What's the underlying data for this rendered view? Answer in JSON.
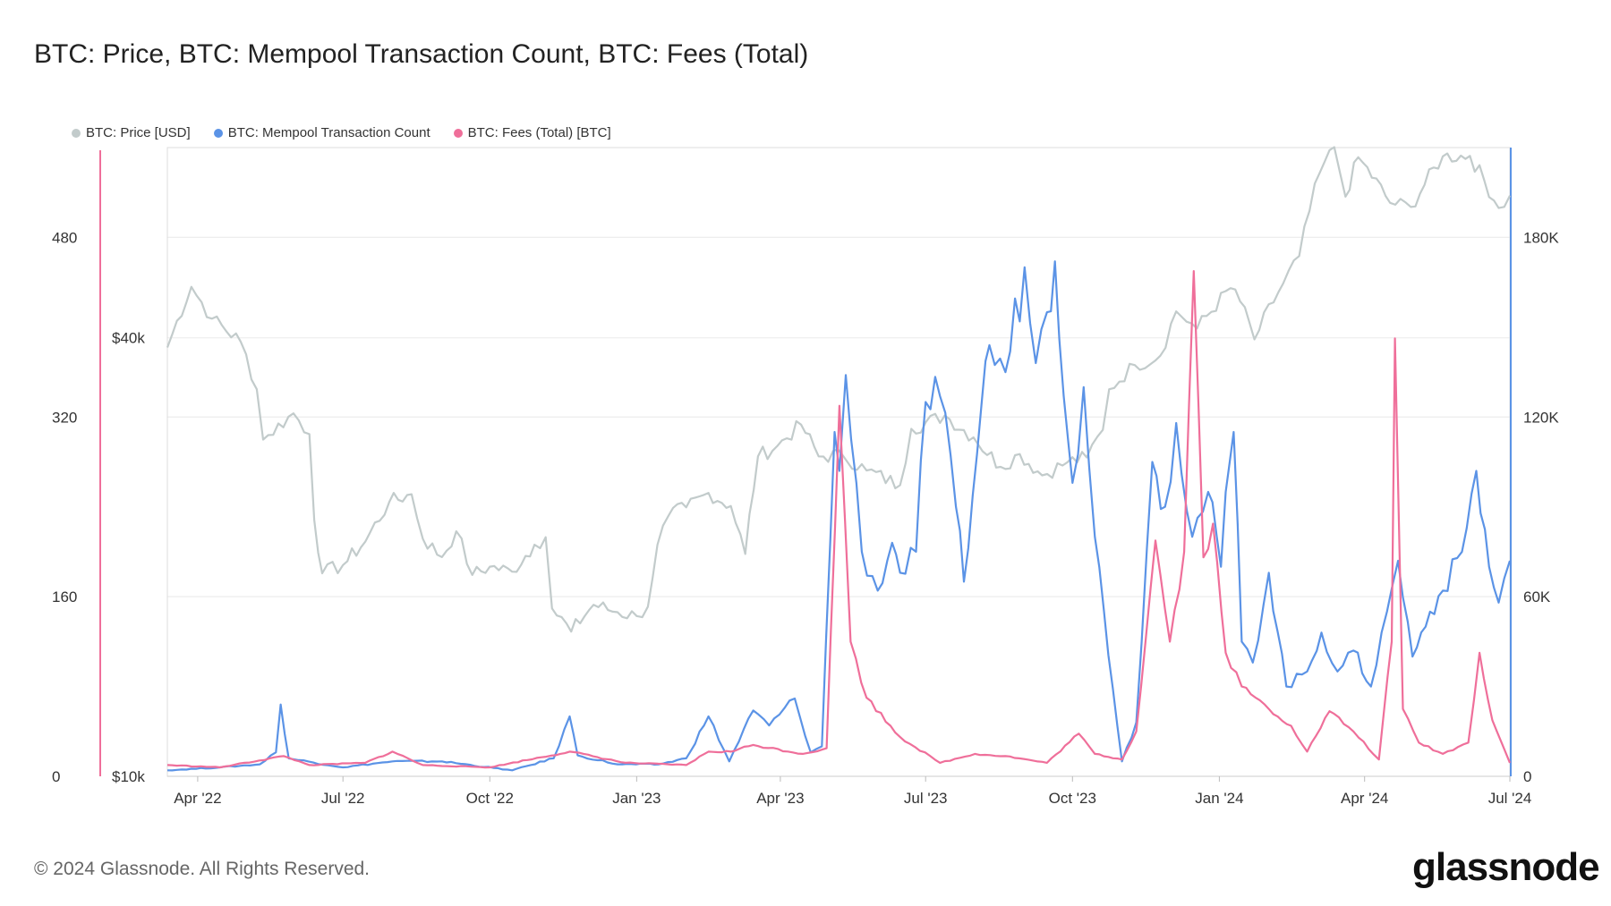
{
  "title": "BTC: Price, BTC: Mempool Transaction Count, BTC: Fees (Total)",
  "footer": "© 2024 Glassnode. All Rights Reserved.",
  "logo": "glassnode",
  "colors": {
    "price": "#c2cbcb",
    "mempool": "#5b93e6",
    "fees": "#ef6f9a"
  },
  "legend": [
    {
      "label": "BTC: Price [USD]",
      "color": "#c2cbcb"
    },
    {
      "label": "BTC: Mempool Transaction Count",
      "color": "#5b93e6"
    },
    {
      "label": "BTC: Fees (Total) [BTC]",
      "color": "#ef6f9a"
    }
  ],
  "chart_data": {
    "type": "line",
    "grid": true,
    "legend_position": "top-left",
    "x_tick_labels": [
      "Apr '22",
      "Jul '22",
      "Oct '22",
      "Jan '23",
      "Apr '23",
      "Jul '23",
      "Oct '23",
      "Jan '24",
      "Apr '24",
      "Jul '24"
    ],
    "x_tick_dates": [
      "2022-04-01",
      "2022-07-01",
      "2022-10-01",
      "2023-01-01",
      "2023-04-01",
      "2023-07-01",
      "2023-10-01",
      "2024-01-01",
      "2024-04-01",
      "2024-07-01"
    ],
    "x_range": [
      "2022-03-13",
      "2024-07-01"
    ],
    "axes": {
      "fees": {
        "ticks": [
          0,
          160,
          320,
          480
        ],
        "tick_labels": [
          "0",
          "160",
          "320",
          "480"
        ],
        "range": [
          0,
          560
        ]
      },
      "price": {
        "scale": "log",
        "ticks": [
          10000,
          40000
        ],
        "tick_labels": [
          "$10k",
          "$40k"
        ],
        "range": [
          10000,
          73000
        ]
      },
      "mempool": {
        "ticks": [
          0,
          60000,
          120000,
          180000
        ],
        "tick_labels": [
          "0",
          "60K",
          "120K",
          "180K"
        ],
        "range": [
          0,
          210000
        ]
      }
    },
    "series": [
      {
        "name": "BTC: Price [USD]",
        "axis": "price",
        "points": [
          [
            "2022-03-13",
            38800
          ],
          [
            "2022-03-28",
            47000
          ],
          [
            "2022-04-10",
            42500
          ],
          [
            "2022-04-28",
            39500
          ],
          [
            "2022-05-08",
            34000
          ],
          [
            "2022-05-12",
            29000
          ],
          [
            "2022-05-31",
            31500
          ],
          [
            "2022-06-10",
            29500
          ],
          [
            "2022-06-13",
            22500
          ],
          [
            "2022-06-18",
            19000
          ],
          [
            "2022-07-01",
            19500
          ],
          [
            "2022-07-15",
            21000
          ],
          [
            "2022-07-30",
            23800
          ],
          [
            "2022-08-13",
            24400
          ],
          [
            "2022-08-20",
            21200
          ],
          [
            "2022-09-01",
            20000
          ],
          [
            "2022-09-10",
            21700
          ],
          [
            "2022-09-20",
            18900
          ],
          [
            "2022-10-01",
            19400
          ],
          [
            "2022-10-15",
            19100
          ],
          [
            "2022-10-29",
            20800
          ],
          [
            "2022-11-05",
            21300
          ],
          [
            "2022-11-09",
            17000
          ],
          [
            "2022-11-21",
            15800
          ],
          [
            "2022-12-05",
            17200
          ],
          [
            "2022-12-20",
            16800
          ],
          [
            "2023-01-01",
            16600
          ],
          [
            "2023-01-08",
            17100
          ],
          [
            "2023-01-14",
            20800
          ],
          [
            "2023-01-21",
            22800
          ],
          [
            "2023-02-01",
            23400
          ],
          [
            "2023-02-15",
            24500
          ],
          [
            "2023-03-01",
            23500
          ],
          [
            "2023-03-10",
            20200
          ],
          [
            "2023-03-18",
            27500
          ],
          [
            "2023-03-30",
            28400
          ],
          [
            "2023-04-14",
            30400
          ],
          [
            "2023-04-25",
            27500
          ],
          [
            "2023-05-10",
            27600
          ],
          [
            "2023-05-25",
            26300
          ],
          [
            "2023-06-15",
            25100
          ],
          [
            "2023-06-22",
            30000
          ],
          [
            "2023-07-13",
            31300
          ],
          [
            "2023-07-31",
            29200
          ],
          [
            "2023-08-17",
            26600
          ],
          [
            "2023-08-29",
            27700
          ],
          [
            "2023-09-12",
            25900
          ],
          [
            "2023-09-28",
            27000
          ],
          [
            "2023-10-10",
            27400
          ],
          [
            "2023-10-20",
            29900
          ],
          [
            "2023-10-24",
            34000
          ],
          [
            "2023-11-09",
            36700
          ],
          [
            "2023-11-25",
            37800
          ],
          [
            "2023-12-05",
            43500
          ],
          [
            "2023-12-18",
            41200
          ],
          [
            "2024-01-08",
            46800
          ],
          [
            "2024-01-11",
            46600
          ],
          [
            "2024-01-23",
            39800
          ],
          [
            "2024-02-10",
            47500
          ],
          [
            "2024-02-20",
            51800
          ],
          [
            "2024-03-04",
            67500
          ],
          [
            "2024-03-13",
            73100
          ],
          [
            "2024-03-20",
            62500
          ],
          [
            "2024-03-28",
            70800
          ],
          [
            "2024-04-17",
            61300
          ],
          [
            "2024-04-30",
            60500
          ],
          [
            "2024-05-20",
            71000
          ],
          [
            "2024-06-06",
            71100
          ],
          [
            "2024-06-24",
            60300
          ],
          [
            "2024-07-01",
            62700
          ]
        ]
      },
      {
        "name": "BTC: Mempool Transaction Count",
        "axis": "mempool",
        "points": [
          [
            "2022-03-13",
            2000
          ],
          [
            "2022-04-15",
            3000
          ],
          [
            "2022-05-10",
            4000
          ],
          [
            "2022-05-20",
            8000
          ],
          [
            "2022-05-23",
            24000
          ],
          [
            "2022-05-28",
            6000
          ],
          [
            "2022-07-01",
            3000
          ],
          [
            "2022-08-01",
            5000
          ],
          [
            "2022-09-01",
            5000
          ],
          [
            "2022-10-15",
            2000
          ],
          [
            "2022-11-10",
            6000
          ],
          [
            "2022-11-20",
            20000
          ],
          [
            "2022-11-25",
            7000
          ],
          [
            "2022-12-20",
            4000
          ],
          [
            "2023-01-15",
            4000
          ],
          [
            "2023-02-01",
            6000
          ],
          [
            "2023-02-15",
            20000
          ],
          [
            "2023-02-28",
            5000
          ],
          [
            "2023-03-15",
            22000
          ],
          [
            "2023-03-25",
            17000
          ],
          [
            "2023-04-10",
            26000
          ],
          [
            "2023-04-20",
            8000
          ],
          [
            "2023-04-27",
            10000
          ],
          [
            "2023-05-05",
            115000
          ],
          [
            "2023-05-08",
            102000
          ],
          [
            "2023-05-12",
            134000
          ],
          [
            "2023-05-22",
            75000
          ],
          [
            "2023-06-01",
            62000
          ],
          [
            "2023-06-10",
            78000
          ],
          [
            "2023-06-15",
            68000
          ],
          [
            "2023-06-25",
            75000
          ],
          [
            "2023-07-01",
            125000
          ],
          [
            "2023-07-10",
            127000
          ],
          [
            "2023-07-20",
            90000
          ],
          [
            "2023-07-25",
            65000
          ],
          [
            "2023-08-05",
            124000
          ],
          [
            "2023-08-10",
            144000
          ],
          [
            "2023-08-20",
            135000
          ],
          [
            "2023-09-01",
            170000
          ],
          [
            "2023-09-08",
            138000
          ],
          [
            "2023-09-15",
            155000
          ],
          [
            "2023-09-20",
            172000
          ],
          [
            "2023-10-01",
            98000
          ],
          [
            "2023-10-08",
            130000
          ],
          [
            "2023-10-15",
            80000
          ],
          [
            "2023-11-01",
            5000
          ],
          [
            "2023-11-10",
            18000
          ],
          [
            "2023-11-20",
            105000
          ],
          [
            "2023-11-28",
            90000
          ],
          [
            "2023-12-05",
            118000
          ],
          [
            "2023-12-15",
            80000
          ],
          [
            "2023-12-25",
            95000
          ],
          [
            "2024-01-02",
            70000
          ],
          [
            "2024-01-05",
            95000
          ],
          [
            "2024-01-10",
            115000
          ],
          [
            "2024-01-15",
            45000
          ],
          [
            "2024-01-22",
            38000
          ],
          [
            "2024-02-01",
            68000
          ],
          [
            "2024-02-12",
            30000
          ],
          [
            "2024-02-25",
            35000
          ],
          [
            "2024-03-05",
            48000
          ],
          [
            "2024-03-15",
            35000
          ],
          [
            "2024-03-25",
            42000
          ],
          [
            "2024-04-05",
            30000
          ],
          [
            "2024-04-15",
            55000
          ],
          [
            "2024-04-22",
            72000
          ],
          [
            "2024-05-01",
            40000
          ],
          [
            "2024-05-12",
            55000
          ],
          [
            "2024-05-20",
            62000
          ],
          [
            "2024-06-01",
            75000
          ],
          [
            "2024-06-10",
            102000
          ],
          [
            "2024-06-18",
            70000
          ],
          [
            "2024-06-24",
            58000
          ],
          [
            "2024-07-01",
            72000
          ]
        ]
      },
      {
        "name": "BTC: Fees (Total) [BTC]",
        "axis": "fees",
        "points": [
          [
            "2022-03-13",
            10
          ],
          [
            "2022-04-15",
            8
          ],
          [
            "2022-05-25",
            18
          ],
          [
            "2022-06-10",
            10
          ],
          [
            "2022-07-15",
            12
          ],
          [
            "2022-08-01",
            22
          ],
          [
            "2022-08-20",
            10
          ],
          [
            "2022-10-01",
            8
          ],
          [
            "2022-11-20",
            22
          ],
          [
            "2022-12-25",
            12
          ],
          [
            "2023-02-01",
            10
          ],
          [
            "2023-02-15",
            22
          ],
          [
            "2023-03-01",
            22
          ],
          [
            "2023-03-15",
            28
          ],
          [
            "2023-04-15",
            20
          ],
          [
            "2023-04-30",
            25
          ],
          [
            "2023-05-08",
            330
          ],
          [
            "2023-05-15",
            120
          ],
          [
            "2023-05-25",
            70
          ],
          [
            "2023-06-15",
            35
          ],
          [
            "2023-07-10",
            12
          ],
          [
            "2023-08-01",
            20
          ],
          [
            "2023-08-20",
            18
          ],
          [
            "2023-09-15",
            12
          ],
          [
            "2023-10-05",
            38
          ],
          [
            "2023-10-15",
            20
          ],
          [
            "2023-11-01",
            15
          ],
          [
            "2023-11-10",
            40
          ],
          [
            "2023-11-22",
            210
          ],
          [
            "2023-12-01",
            120
          ],
          [
            "2023-12-10",
            200
          ],
          [
            "2023-12-16",
            450
          ],
          [
            "2023-12-22",
            195
          ],
          [
            "2023-12-28",
            225
          ],
          [
            "2024-01-05",
            110
          ],
          [
            "2024-01-15",
            80
          ],
          [
            "2024-02-01",
            60
          ],
          [
            "2024-02-15",
            45
          ],
          [
            "2024-02-25",
            22
          ],
          [
            "2024-03-10",
            58
          ],
          [
            "2024-03-25",
            40
          ],
          [
            "2024-04-10",
            15
          ],
          [
            "2024-04-18",
            120
          ],
          [
            "2024-04-20",
            390
          ],
          [
            "2024-04-25",
            60
          ],
          [
            "2024-05-05",
            30
          ],
          [
            "2024-05-20",
            20
          ],
          [
            "2024-06-05",
            30
          ],
          [
            "2024-06-12",
            110
          ],
          [
            "2024-06-20",
            50
          ],
          [
            "2024-07-01",
            12
          ]
        ]
      }
    ]
  }
}
